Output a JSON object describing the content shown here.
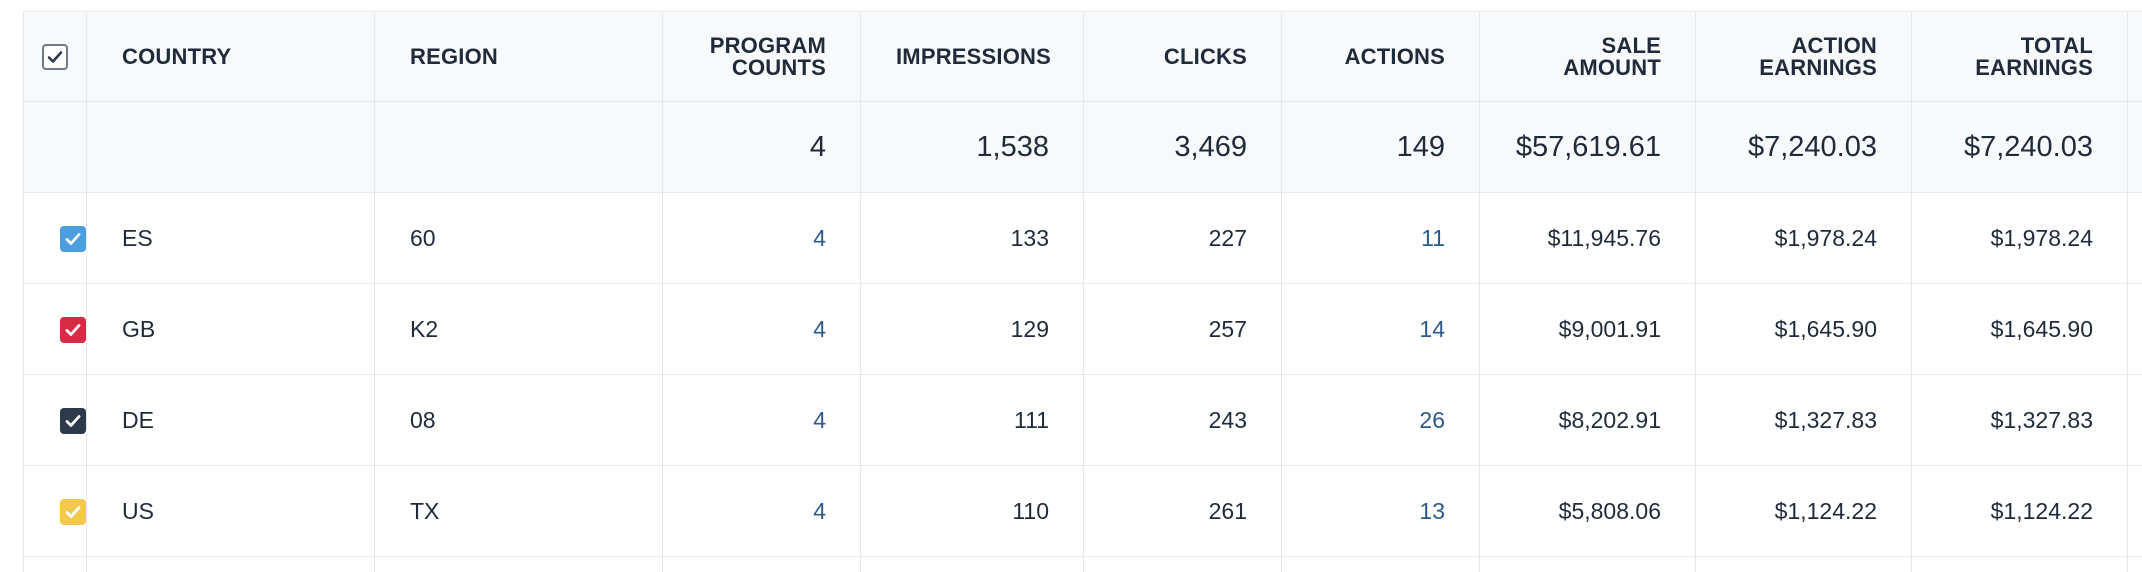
{
  "columns": {
    "select_all": "",
    "country": "COUNTRY",
    "region": "REGION",
    "program_counts": "PROGRAM COUNTS",
    "impressions": "IMPRESSIONS",
    "clicks": "CLICKS",
    "actions": "ACTIONS",
    "sale_amount": "SALE AMOUNT",
    "action_earnings": "ACTION EARNINGS",
    "total_earnings": "TOTAL EARNINGS"
  },
  "totals": {
    "program_counts": "4",
    "impressions": "1,538",
    "clicks": "3,469",
    "actions": "149",
    "sale_amount": "$57,619.61",
    "action_earnings": "$7,240.03",
    "total_earnings": "$7,240.03"
  },
  "rows": [
    {
      "checkbox_color": "#4a9fde",
      "checked": true,
      "country": "ES",
      "region": "60",
      "program_counts": "4",
      "impressions": "133",
      "clicks": "227",
      "actions": "11",
      "sale_amount": "$11,945.76",
      "action_earnings": "$1,978.24",
      "total_earnings": "$1,978.24"
    },
    {
      "checkbox_color": "#d82c45",
      "checked": true,
      "country": "GB",
      "region": "K2",
      "program_counts": "4",
      "impressions": "129",
      "clicks": "257",
      "actions": "14",
      "sale_amount": "$9,001.91",
      "action_earnings": "$1,645.90",
      "total_earnings": "$1,645.90"
    },
    {
      "checkbox_color": "#2d3a4c",
      "checked": true,
      "country": "DE",
      "region": "08",
      "program_counts": "4",
      "impressions": "111",
      "clicks": "243",
      "actions": "26",
      "sale_amount": "$8,202.91",
      "action_earnings": "$1,327.83",
      "total_earnings": "$1,327.83"
    },
    {
      "checkbox_color": "#f2c94c",
      "checked": true,
      "country": "US",
      "region": "TX",
      "program_counts": "4",
      "impressions": "110",
      "clicks": "261",
      "actions": "13",
      "sale_amount": "$5,808.06",
      "action_earnings": "$1,124.22",
      "total_earnings": "$1,124.22"
    }
  ],
  "colors": {
    "link": "#2c5a8c",
    "header_bg": "#f8f9fa",
    "border": "#e6e8eb",
    "text": "#1f2a3a"
  },
  "icons": {
    "header_checkbox": "checkmark-icon",
    "row_checkbox": "checkmark-icon"
  }
}
